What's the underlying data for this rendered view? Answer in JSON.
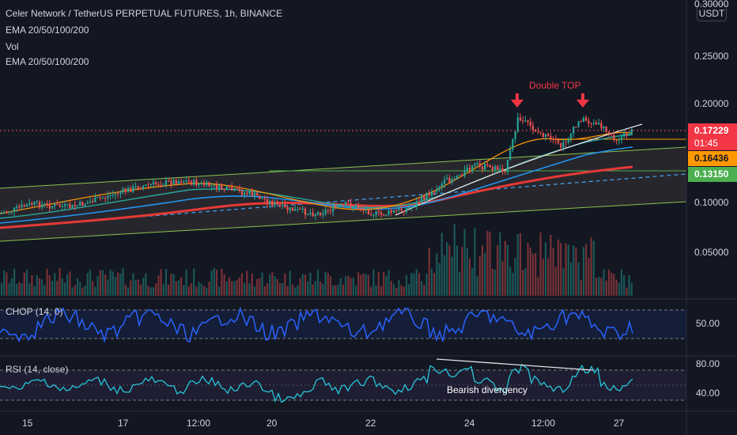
{
  "legend": {
    "title": "Celer Network / TetherUS PERPETUAL FUTURES, 1h, BINANCE",
    "line2": "EMA 20/50/100/200",
    "line3": "Vol",
    "line4": "EMA 20/50/100/200"
  },
  "currency_button": "USDT",
  "price_axis": {
    "ticks": [
      "0.30000",
      "0.25000",
      "0.20000",
      "0.10000",
      "0.05000"
    ]
  },
  "price_tags": {
    "last": "0.17229",
    "countdown": "01:45",
    "ema_orange": "0.16436",
    "ema_green": "0.13150"
  },
  "annotations": {
    "double_top": "Double TOP",
    "bearish": "Bearish divergency"
  },
  "chop": {
    "label": "CHOP (14, 0)",
    "tick": "50.00"
  },
  "rsi": {
    "label": "RSI (14, close)",
    "ticks": [
      "80.00",
      "40.00"
    ]
  },
  "time_axis": [
    "15",
    "17",
    "12:00",
    "20",
    "22",
    "24",
    "12:00",
    "27"
  ],
  "colors": {
    "background": "#131722",
    "up": "#26a69a",
    "down": "#ef5350",
    "annotation": "#f23645",
    "ema_orange": "#ff9800",
    "ema_green": "#4caf50",
    "channel": "#8bc34a",
    "chop_line": "#2962ff",
    "rsi_line": "#26c6da"
  },
  "chart_data": [
    {
      "type": "line",
      "title": "Celer Network / TetherUS PERPETUAL FUTURES, 1h, BINANCE",
      "ylim": [
        0.0,
        0.3
      ],
      "y_scale": "log",
      "x_ticks": [
        "15",
        "17",
        "12:00",
        "20",
        "22",
        "24",
        "12:00",
        "27"
      ],
      "series": [
        {
          "name": "EMA 20/50/100/200",
          "values": [
            0.105,
            0.112,
            0.118,
            0.124,
            0.126,
            0.12,
            0.112,
            0.106,
            0.104,
            0.105,
            0.112,
            0.128,
            0.148,
            0.158,
            0.178,
            0.175,
            0.178,
            0.19,
            0.175,
            0.172
          ]
        }
      ],
      "last_price": 0.17229,
      "marked_levels": [
        0.16436,
        0.1315
      ]
    },
    {
      "type": "line",
      "title": "CHOP (14, 0)",
      "y_ticks": [
        50.0
      ]
    },
    {
      "type": "line",
      "title": "RSI (14, close)",
      "y_ticks": [
        80.0,
        40.0
      ]
    }
  ]
}
